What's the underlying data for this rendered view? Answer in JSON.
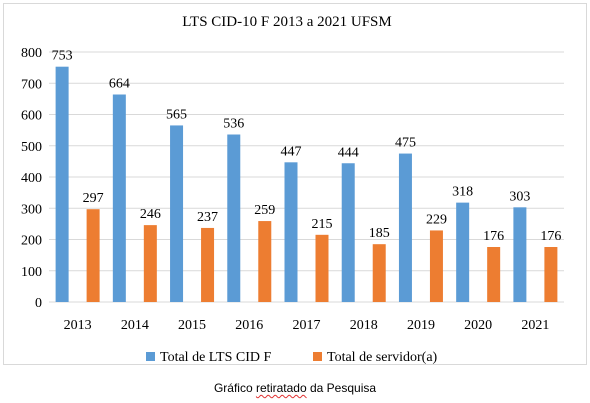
{
  "chart_data": {
    "type": "bar",
    "title": "LTS CID-10 F 2013 a 2021 UFSM",
    "categories": [
      "2013",
      "2014",
      "2015",
      "2016",
      "2017",
      "2018",
      "2019",
      "2020",
      "2021"
    ],
    "series": [
      {
        "name": "Total de LTS CID F",
        "color": "#5b9bd5",
        "values": [
          753,
          664,
          565,
          536,
          447,
          444,
          475,
          318,
          303
        ]
      },
      {
        "name": "Total de servidor(a)",
        "color": "#ed7d31",
        "values": [
          297,
          246,
          237,
          259,
          215,
          185,
          229,
          176,
          176
        ]
      }
    ],
    "ylim": [
      0,
      800
    ],
    "yticks": [
      0,
      100,
      200,
      300,
      400,
      500,
      600,
      700,
      800
    ],
    "grid": true,
    "legend": "bottom",
    "data_labels": true,
    "xlabel": "",
    "ylabel": ""
  },
  "caption": {
    "before": "Gráfico ",
    "underlined": "retiratado",
    "after": " da Pesquisa"
  }
}
